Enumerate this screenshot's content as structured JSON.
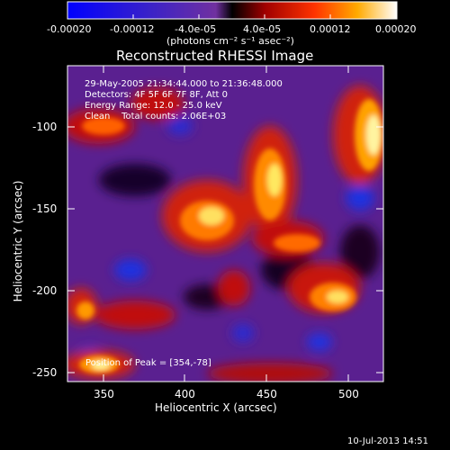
{
  "colorbar": {
    "ticks": [
      "-0.00020",
      "-0.00012",
      "-4.0e-05",
      "4.0e-05",
      "0.00012",
      "0.00020"
    ],
    "unit_label": "(photons cm⁻² s⁻¹ asec⁻²)"
  },
  "plot": {
    "title": "Reconstructed RHESSI Image",
    "annotations": [
      "29-May-2005 21:34:44.000 to 21:36:48.000",
      "Detectors: 4F 5F 6F 7F 8F, Att 0",
      "Energy Range: 12.0 - 25.0 keV",
      "Clean    Total counts: 2.06E+03"
    ],
    "peak_text": "Position of Peak = [354,-78]",
    "xlabel": "Heliocentric X (arcsec)",
    "ylabel": "Heliocentric Y (arcsec)",
    "x_ticks": [
      "350",
      "400",
      "450",
      "500"
    ],
    "y_ticks": [
      "-100",
      "-150",
      "-200",
      "-250"
    ],
    "timestamp": "10-Jul-2013 14:51"
  }
}
